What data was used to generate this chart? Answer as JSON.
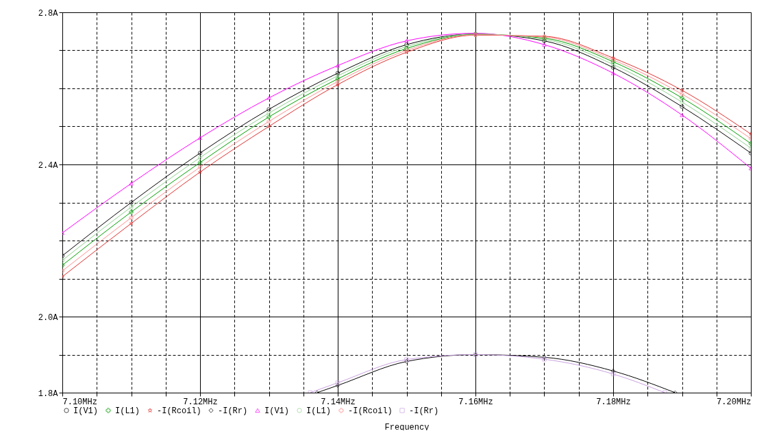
{
  "chart_data": {
    "type": "line",
    "xlabel": "Frequency",
    "x": [
      7.1,
      7.11,
      7.12,
      7.13,
      7.14,
      7.15,
      7.16,
      7.17,
      7.18,
      7.19,
      7.2
    ],
    "series": [
      {
        "name": "I(V1)",
        "color": "#000000",
        "marker": "circle",
        "values": [
          2.16,
          2.3,
          2.43,
          2.545,
          2.64,
          2.715,
          2.743,
          2.725,
          2.655,
          2.552,
          2.43
        ]
      },
      {
        "name": "I(L1)",
        "color": "#00a000",
        "marker": "cross",
        "values": [
          2.135,
          2.275,
          2.405,
          2.525,
          2.625,
          2.705,
          2.742,
          2.732,
          2.67,
          2.575,
          2.455
        ]
      },
      {
        "name": "-I(Rcoil)",
        "color": "#e03030",
        "marker": "star",
        "values": [
          2.105,
          2.245,
          2.38,
          2.5,
          2.61,
          2.695,
          2.74,
          2.737,
          2.68,
          2.595,
          2.48
        ]
      },
      {
        "name": "-I(Rr)",
        "color": "#000000",
        "marker": "diamond",
        "x": [
          7.137,
          7.14,
          7.15,
          7.16,
          7.17,
          7.18,
          7.189
        ],
        "values": [
          1.8,
          1.819,
          1.882,
          1.9,
          1.893,
          1.857,
          1.8
        ]
      },
      {
        "name": "I(V1)",
        "color": "#ff00ff",
        "marker": "triangle",
        "values": [
          2.22,
          2.35,
          2.47,
          2.575,
          2.66,
          2.725,
          2.745,
          2.715,
          2.64,
          2.53,
          2.39
        ]
      },
      {
        "name": "I(L1)",
        "color": "#90d090",
        "marker": "circle",
        "values": [
          2.148,
          2.288,
          2.418,
          2.535,
          2.633,
          2.71,
          2.743,
          2.729,
          2.663,
          2.564,
          2.443
        ]
      },
      {
        "name": "-I(Rcoil)",
        "color": "#ff9090",
        "marker": "cross",
        "values": [
          2.12,
          2.26,
          2.393,
          2.513,
          2.618,
          2.7,
          2.741,
          2.735,
          2.675,
          2.585,
          2.468
        ]
      },
      {
        "name": "-I(Rr)",
        "color": "#c8a0e0",
        "marker": "square",
        "x": [
          7.136,
          7.14,
          7.15,
          7.16,
          7.17,
          7.18,
          7.1875
        ],
        "values": [
          1.8,
          1.826,
          1.887,
          1.9,
          1.888,
          1.849,
          1.8
        ]
      }
    ],
    "xlim": [
      7.1,
      7.2
    ],
    "xticks": [
      {
        "value": 7.1,
        "label": "7.10MHz"
      },
      {
        "value": 7.105,
        "label": null
      },
      {
        "value": 7.11,
        "label": null
      },
      {
        "value": 7.115,
        "label": null
      },
      {
        "value": 7.12,
        "label": "7.12MHz"
      },
      {
        "value": 7.125,
        "label": null
      },
      {
        "value": 7.13,
        "label": null
      },
      {
        "value": 7.135,
        "label": null
      },
      {
        "value": 7.14,
        "label": "7.14MHz"
      },
      {
        "value": 7.145,
        "label": null
      },
      {
        "value": 7.15,
        "label": null
      },
      {
        "value": 7.155,
        "label": null
      },
      {
        "value": 7.16,
        "label": "7.16MHz"
      },
      {
        "value": 7.165,
        "label": null
      },
      {
        "value": 7.17,
        "label": null
      },
      {
        "value": 7.175,
        "label": null
      },
      {
        "value": 7.18,
        "label": "7.18MHz"
      },
      {
        "value": 7.185,
        "label": null
      },
      {
        "value": 7.19,
        "label": null
      },
      {
        "value": 7.195,
        "label": null
      },
      {
        "value": 7.2,
        "label": "7.20MHz"
      }
    ],
    "ylim": [
      1.8,
      2.8
    ],
    "yticks": [
      {
        "value": 1.8,
        "label": "1.8A"
      },
      {
        "value": 1.9,
        "label": null
      },
      {
        "value": 2.0,
        "label": "2.0A"
      },
      {
        "value": 2.1,
        "label": null
      },
      {
        "value": 2.2,
        "label": null
      },
      {
        "value": 2.3,
        "label": null
      },
      {
        "value": 2.4,
        "label": "2.4A"
      },
      {
        "value": 2.5,
        "label": null
      },
      {
        "value": 2.6,
        "label": null
      },
      {
        "value": 2.7,
        "label": null
      },
      {
        "value": 2.8,
        "label": "2.8A"
      }
    ],
    "grid": true,
    "legend": "bottom"
  }
}
